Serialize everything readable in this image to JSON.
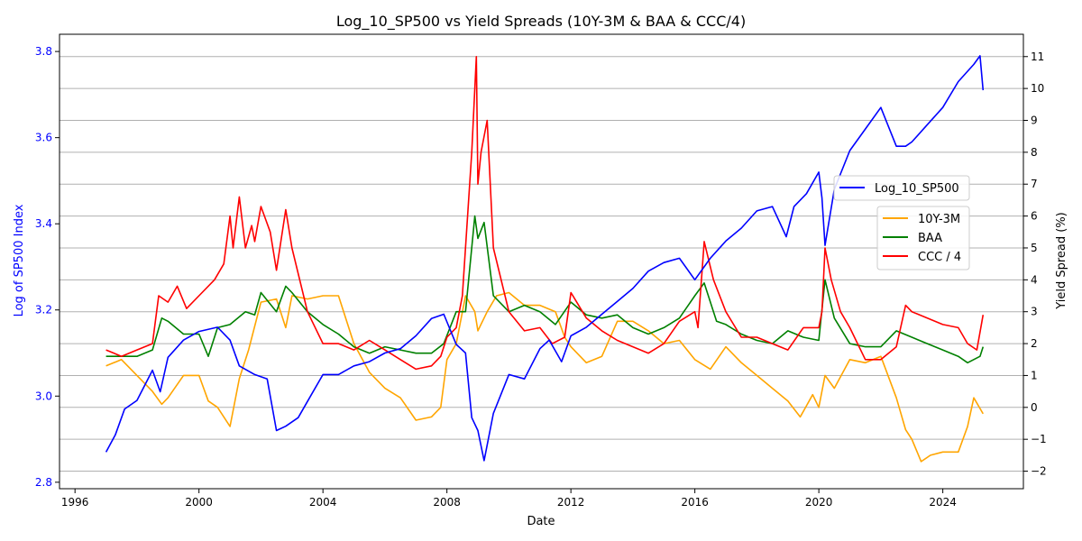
{
  "chart_data": {
    "type": "line",
    "title": "Log_10_SP500 vs Yield Spreads (10Y-3M & BAA & CCC/4)",
    "xlabel": "Date",
    "ylabel_left": "Log of SP500 Index",
    "ylabel_right": "Yield Spread (%)",
    "xlim": [
      1995.5,
      2026.6
    ],
    "ylim_left": [
      2.785,
      3.84
    ],
    "ylim_right": [
      -2.55,
      11.7
    ],
    "x_ticks": [
      1996,
      2000,
      2004,
      2008,
      2012,
      2016,
      2020,
      2024
    ],
    "y_ticks_left": [
      2.8,
      3.0,
      3.2,
      3.4,
      3.6,
      3.8
    ],
    "y_ticks_right": [
      -2,
      -1,
      0,
      1,
      2,
      3,
      4,
      5,
      6,
      7,
      8,
      9,
      10,
      11
    ],
    "grid": "horizontal-right-axis",
    "legend_left": {
      "placement": "right-center",
      "entries": [
        "Log_10_SP500"
      ]
    },
    "legend_right": {
      "placement": "right-center",
      "entries": [
        "10Y-3M",
        "BAA",
        "CCC / 4"
      ]
    },
    "colors": {
      "sp500": "#0000ff",
      "t10y3m": "#ffa500",
      "baa": "#008000",
      "ccc": "#ff0000",
      "left_axis": "#0000ff"
    },
    "series": [
      {
        "name": "Log_10_SP500",
        "axis": "left",
        "x": [
          1997.0,
          1997.3,
          1997.6,
          1998.0,
          1998.5,
          1998.75,
          1999.0,
          1999.5,
          2000.0,
          2000.6,
          2001.0,
          2001.3,
          2001.8,
          2002.2,
          2002.5,
          2002.8,
          2003.2,
          2003.6,
          2004.0,
          2004.5,
          2005.0,
          2005.5,
          2006.0,
          2006.5,
          2007.0,
          2007.5,
          2007.9,
          2008.3,
          2008.6,
          2008.8,
          2009.0,
          2009.2,
          2009.5,
          2010.0,
          2010.5,
          2011.0,
          2011.3,
          2011.7,
          2012.0,
          2012.5,
          2013.0,
          2013.5,
          2014.0,
          2014.5,
          2015.0,
          2015.5,
          2016.0,
          2016.5,
          2017.0,
          2017.5,
          2018.0,
          2018.5,
          2018.95,
          2019.2,
          2019.6,
          2020.0,
          2020.1,
          2020.2,
          2020.5,
          2021.0,
          2021.5,
          2022.0,
          2022.5,
          2022.8,
          2023.0,
          2023.5,
          2024.0,
          2024.5,
          2025.0,
          2025.2,
          2025.3
        ],
        "values": [
          2.87,
          2.91,
          2.97,
          2.99,
          3.06,
          3.01,
          3.09,
          3.13,
          3.15,
          3.16,
          3.13,
          3.07,
          3.05,
          3.04,
          2.92,
          2.93,
          2.95,
          3.0,
          3.05,
          3.05,
          3.07,
          3.08,
          3.1,
          3.11,
          3.14,
          3.18,
          3.19,
          3.12,
          3.1,
          2.95,
          2.92,
          2.85,
          2.96,
          3.05,
          3.04,
          3.11,
          3.13,
          3.08,
          3.14,
          3.16,
          3.19,
          3.22,
          3.25,
          3.29,
          3.31,
          3.32,
          3.27,
          3.32,
          3.36,
          3.39,
          3.43,
          3.44,
          3.37,
          3.44,
          3.47,
          3.52,
          3.46,
          3.35,
          3.48,
          3.57,
          3.62,
          3.67,
          3.58,
          3.58,
          3.59,
          3.63,
          3.67,
          3.73,
          3.77,
          3.79,
          3.71
        ]
      },
      {
        "name": "10Y-3M",
        "axis": "right",
        "x": [
          1997.0,
          1997.5,
          1998.0,
          1998.5,
          1998.8,
          1999.0,
          1999.5,
          2000.0,
          2000.3,
          2000.6,
          2001.0,
          2001.3,
          2001.6,
          2002.0,
          2002.5,
          2002.8,
          2003.0,
          2003.5,
          2004.0,
          2004.5,
          2005.0,
          2005.5,
          2006.0,
          2006.5,
          2007.0,
          2007.5,
          2007.8,
          2008.0,
          2008.3,
          2008.6,
          2008.9,
          2009.0,
          2009.3,
          2009.6,
          2010.0,
          2010.5,
          2011.0,
          2011.5,
          2011.8,
          2012.0,
          2012.5,
          2013.0,
          2013.5,
          2014.0,
          2014.5,
          2015.0,
          2015.5,
          2016.0,
          2016.5,
          2017.0,
          2017.5,
          2018.0,
          2018.5,
          2019.0,
          2019.4,
          2019.8,
          2020.0,
          2020.2,
          2020.5,
          2021.0,
          2021.5,
          2022.0,
          2022.5,
          2022.8,
          2023.0,
          2023.3,
          2023.6,
          2024.0,
          2024.5,
          2024.8,
          2025.0,
          2025.3
        ],
        "values": [
          1.3,
          1.5,
          1.0,
          0.5,
          0.1,
          0.3,
          1.0,
          1.0,
          0.2,
          0.0,
          -0.6,
          0.9,
          1.8,
          3.3,
          3.4,
          2.5,
          3.5,
          3.4,
          3.5,
          3.5,
          2.0,
          1.1,
          0.6,
          0.3,
          -0.4,
          -0.3,
          0.0,
          1.5,
          2.0,
          3.5,
          3.0,
          2.4,
          3.0,
          3.5,
          3.6,
          3.2,
          3.2,
          3.0,
          2.2,
          1.9,
          1.4,
          1.6,
          2.7,
          2.7,
          2.4,
          2.0,
          2.1,
          1.5,
          1.2,
          1.9,
          1.4,
          1.0,
          0.6,
          0.2,
          -0.3,
          0.4,
          0.0,
          1.0,
          0.6,
          1.5,
          1.4,
          1.6,
          0.3,
          -0.7,
          -1.0,
          -1.7,
          -1.5,
          -1.4,
          -1.4,
          -0.6,
          0.3,
          -0.2
        ]
      },
      {
        "name": "BAA",
        "axis": "right",
        "x": [
          1997.0,
          1997.5,
          1998.0,
          1998.5,
          1998.8,
          1999.0,
          1999.5,
          2000.0,
          2000.3,
          2000.6,
          2001.0,
          2001.5,
          2001.8,
          2002.0,
          2002.5,
          2002.8,
          2003.0,
          2003.5,
          2004.0,
          2004.5,
          2005.0,
          2005.5,
          2006.0,
          2006.5,
          2007.0,
          2007.5,
          2007.9,
          2008.3,
          2008.6,
          2008.9,
          2009.0,
          2009.2,
          2009.5,
          2010.0,
          2010.5,
          2011.0,
          2011.5,
          2012.0,
          2012.5,
          2013.0,
          2013.5,
          2014.0,
          2014.5,
          2015.0,
          2015.5,
          2016.0,
          2016.3,
          2016.7,
          2017.0,
          2017.5,
          2018.0,
          2018.5,
          2019.0,
          2019.5,
          2020.0,
          2020.2,
          2020.5,
          2021.0,
          2021.5,
          2022.0,
          2022.5,
          2023.0,
          2023.5,
          2024.0,
          2024.5,
          2024.8,
          2025.2,
          2025.3
        ],
        "values": [
          1.6,
          1.6,
          1.6,
          1.8,
          2.8,
          2.7,
          2.3,
          2.3,
          1.6,
          2.5,
          2.6,
          3.0,
          2.9,
          3.6,
          3.0,
          3.8,
          3.6,
          3.0,
          2.6,
          2.3,
          1.9,
          1.7,
          1.9,
          1.8,
          1.7,
          1.7,
          2.0,
          3.0,
          3.0,
          6.0,
          5.3,
          5.8,
          3.5,
          3.0,
          3.2,
          3.0,
          2.6,
          3.3,
          2.9,
          2.8,
          2.9,
          2.5,
          2.3,
          2.5,
          2.8,
          3.5,
          3.9,
          2.7,
          2.6,
          2.3,
          2.1,
          2.0,
          2.4,
          2.2,
          2.1,
          4.0,
          2.8,
          2.0,
          1.9,
          1.9,
          2.4,
          2.2,
          2.0,
          1.8,
          1.6,
          1.4,
          1.6,
          1.9
        ]
      },
      {
        "name": "CCC / 4",
        "axis": "right",
        "x": [
          1997.0,
          1997.5,
          1998.0,
          1998.5,
          1998.7,
          1999.0,
          1999.3,
          1999.6,
          2000.0,
          2000.5,
          2000.8,
          2001.0,
          2001.1,
          2001.3,
          2001.5,
          2001.7,
          2001.8,
          2002.0,
          2002.3,
          2002.5,
          2002.8,
          2003.0,
          2003.5,
          2004.0,
          2004.5,
          2005.0,
          2005.5,
          2006.0,
          2006.5,
          2007.0,
          2007.5,
          2007.8,
          2008.0,
          2008.3,
          2008.5,
          2008.8,
          2008.95,
          2009.0,
          2009.1,
          2009.3,
          2009.5,
          2010.0,
          2010.5,
          2011.0,
          2011.4,
          2011.8,
          2012.0,
          2012.5,
          2013.0,
          2013.5,
          2014.0,
          2014.5,
          2015.0,
          2015.5,
          2016.0,
          2016.1,
          2016.3,
          2016.6,
          2017.0,
          2017.5,
          2018.0,
          2018.5,
          2019.0,
          2019.5,
          2020.0,
          2020.1,
          2020.2,
          2020.4,
          2020.7,
          2021.0,
          2021.5,
          2022.0,
          2022.5,
          2022.8,
          2023.0,
          2023.5,
          2024.0,
          2024.5,
          2024.8,
          2025.1,
          2025.3
        ],
        "values": [
          1.8,
          1.6,
          1.8,
          2.0,
          3.5,
          3.3,
          3.8,
          3.1,
          3.5,
          4.0,
          4.5,
          6.0,
          5.0,
          6.6,
          5.0,
          5.7,
          5.2,
          6.3,
          5.5,
          4.3,
          6.2,
          5.0,
          3.0,
          2.0,
          2.0,
          1.8,
          2.1,
          1.8,
          1.5,
          1.2,
          1.3,
          1.6,
          2.2,
          2.5,
          3.5,
          8.0,
          11.0,
          7.0,
          8.0,
          9.0,
          5.0,
          3.0,
          2.4,
          2.5,
          2.0,
          2.2,
          3.6,
          2.8,
          2.4,
          2.1,
          1.9,
          1.7,
          2.0,
          2.7,
          3.0,
          2.5,
          5.2,
          4.0,
          3.0,
          2.2,
          2.2,
          2.0,
          1.8,
          2.5,
          2.5,
          3.0,
          5.0,
          4.0,
          3.0,
          2.5,
          1.5,
          1.5,
          1.9,
          3.2,
          3.0,
          2.8,
          2.6,
          2.5,
          2.0,
          1.8,
          2.9
        ]
      }
    ]
  }
}
